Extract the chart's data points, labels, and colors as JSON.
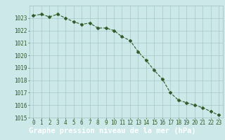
{
  "x": [
    0,
    1,
    2,
    3,
    4,
    5,
    6,
    7,
    8,
    9,
    10,
    11,
    12,
    13,
    14,
    15,
    16,
    17,
    18,
    19,
    20,
    21,
    22,
    23
  ],
  "y": [
    1023.2,
    1023.3,
    1023.1,
    1023.3,
    1023.0,
    1022.7,
    1022.5,
    1022.6,
    1022.2,
    1022.2,
    1022.0,
    1021.5,
    1021.2,
    1020.3,
    1019.6,
    1018.8,
    1018.1,
    1017.0,
    1016.4,
    1016.2,
    1016.0,
    1015.8,
    1015.5,
    1015.2
  ],
  "line_color": "#2d5a27",
  "marker_color": "#2d5a27",
  "bg_color": "#cce8e8",
  "plot_bg_color": "#cce8e8",
  "grid_color": "#9fbfbf",
  "bottom_bar_color": "#3a7a3a",
  "xlabel": "Graphe pression niveau de la mer (hPa)",
  "xlabel_color": "#ffffff",
  "ylim": [
    1015,
    1024
  ],
  "xlim": [
    -0.5,
    23.5
  ],
  "yticks": [
    1015,
    1016,
    1017,
    1018,
    1019,
    1020,
    1021,
    1022,
    1023
  ],
  "xticks": [
    0,
    1,
    2,
    3,
    4,
    5,
    6,
    7,
    8,
    9,
    10,
    11,
    12,
    13,
    14,
    15,
    16,
    17,
    18,
    19,
    20,
    21,
    22,
    23
  ],
  "tick_label_fontsize": 5.5,
  "xlabel_fontsize": 7.5,
  "line_width": 0.8,
  "marker_size": 2.5
}
